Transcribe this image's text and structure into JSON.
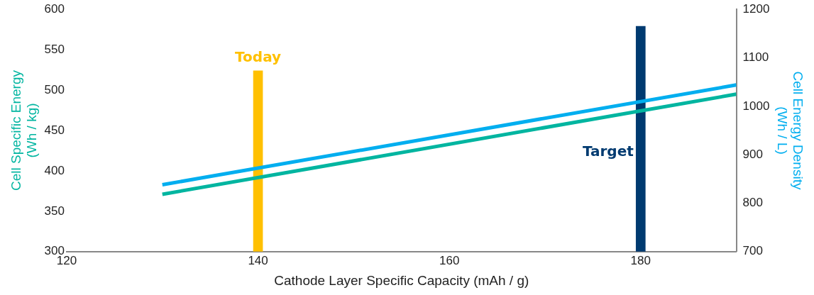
{
  "chart_data": {
    "type": "line",
    "xlabel": "Cathode Layer Specific Capacity (mAh / g)",
    "ylabel": "Cell Specific Energy (Wh / kg)",
    "y2label": "Cell Energy Density (Wh / L)",
    "xlim": [
      120,
      190
    ],
    "xticks": [
      120,
      140,
      160,
      180
    ],
    "ylim": [
      300,
      600
    ],
    "yticks": [
      300,
      350,
      400,
      450,
      500,
      550,
      600
    ],
    "y2lim": [
      700,
      1200
    ],
    "y2ticks": [
      700,
      800,
      900,
      1000,
      1100,
      1200
    ],
    "grid": false,
    "legend": false,
    "marker": "none",
    "series": [
      {
        "type": "bar",
        "x": [
          140,
          180
        ],
        "values": [
          524,
          579
        ],
        "colors": [
          "#ffc000",
          "#003a70"
        ]
      },
      {
        "color": "#00b5a0",
        "x": [
          130,
          190
        ],
        "values": [
          371,
          495
        ]
      },
      {
        "color": "#00aeef",
        "axis": "y2",
        "x": [
          130,
          190
        ],
        "values": [
          838,
          1044
        ]
      }
    ],
    "annotations": [
      "Today",
      "Target"
    ]
  }
}
